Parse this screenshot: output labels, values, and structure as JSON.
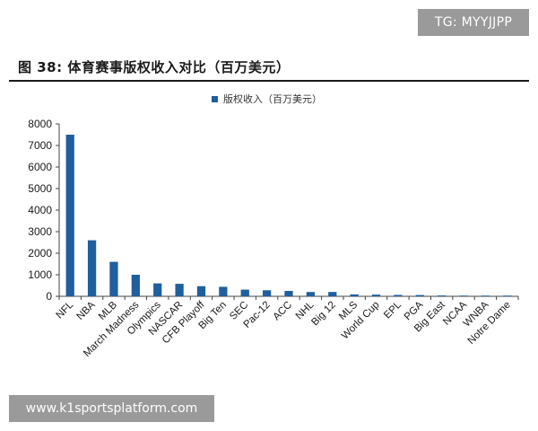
{
  "watermark_top": "TG: MYYJJPP",
  "figure_title": "图 38: 体育赛事版权收入对比（百万美元）",
  "watermark_bottom": "www.k1sportsplatform.com",
  "colors": {
    "bar": "#1f5f9e",
    "axis": "#444444",
    "text": "#1a1a1a"
  },
  "chart_data": {
    "type": "bar",
    "categories": [
      "NFL",
      "NBA",
      "MLB",
      "March Madness",
      "Olympics",
      "NASCAR",
      "CFB Playoff",
      "Big Ten",
      "SEC",
      "Pac-12",
      "ACC",
      "NHL",
      "Big 12",
      "MLS",
      "World Cup",
      "EPL",
      "PGA",
      "Big East",
      "NCAA",
      "WNBA",
      "Notre Dame"
    ],
    "series": [
      {
        "name": "版权收入（百万美元）",
        "values": [
          7500,
          2600,
          1600,
          1000,
          600,
          580,
          470,
          440,
          310,
          280,
          250,
          200,
          200,
          90,
          80,
          65,
          60,
          40,
          30,
          25,
          15
        ]
      }
    ],
    "ylim": [
      0,
      8000
    ],
    "yticks": [
      "0",
      "1000",
      "2000",
      "3000",
      "4000",
      "5000",
      "6000",
      "7000",
      "8000"
    ],
    "legend_position": "top-center",
    "grid": false
  }
}
